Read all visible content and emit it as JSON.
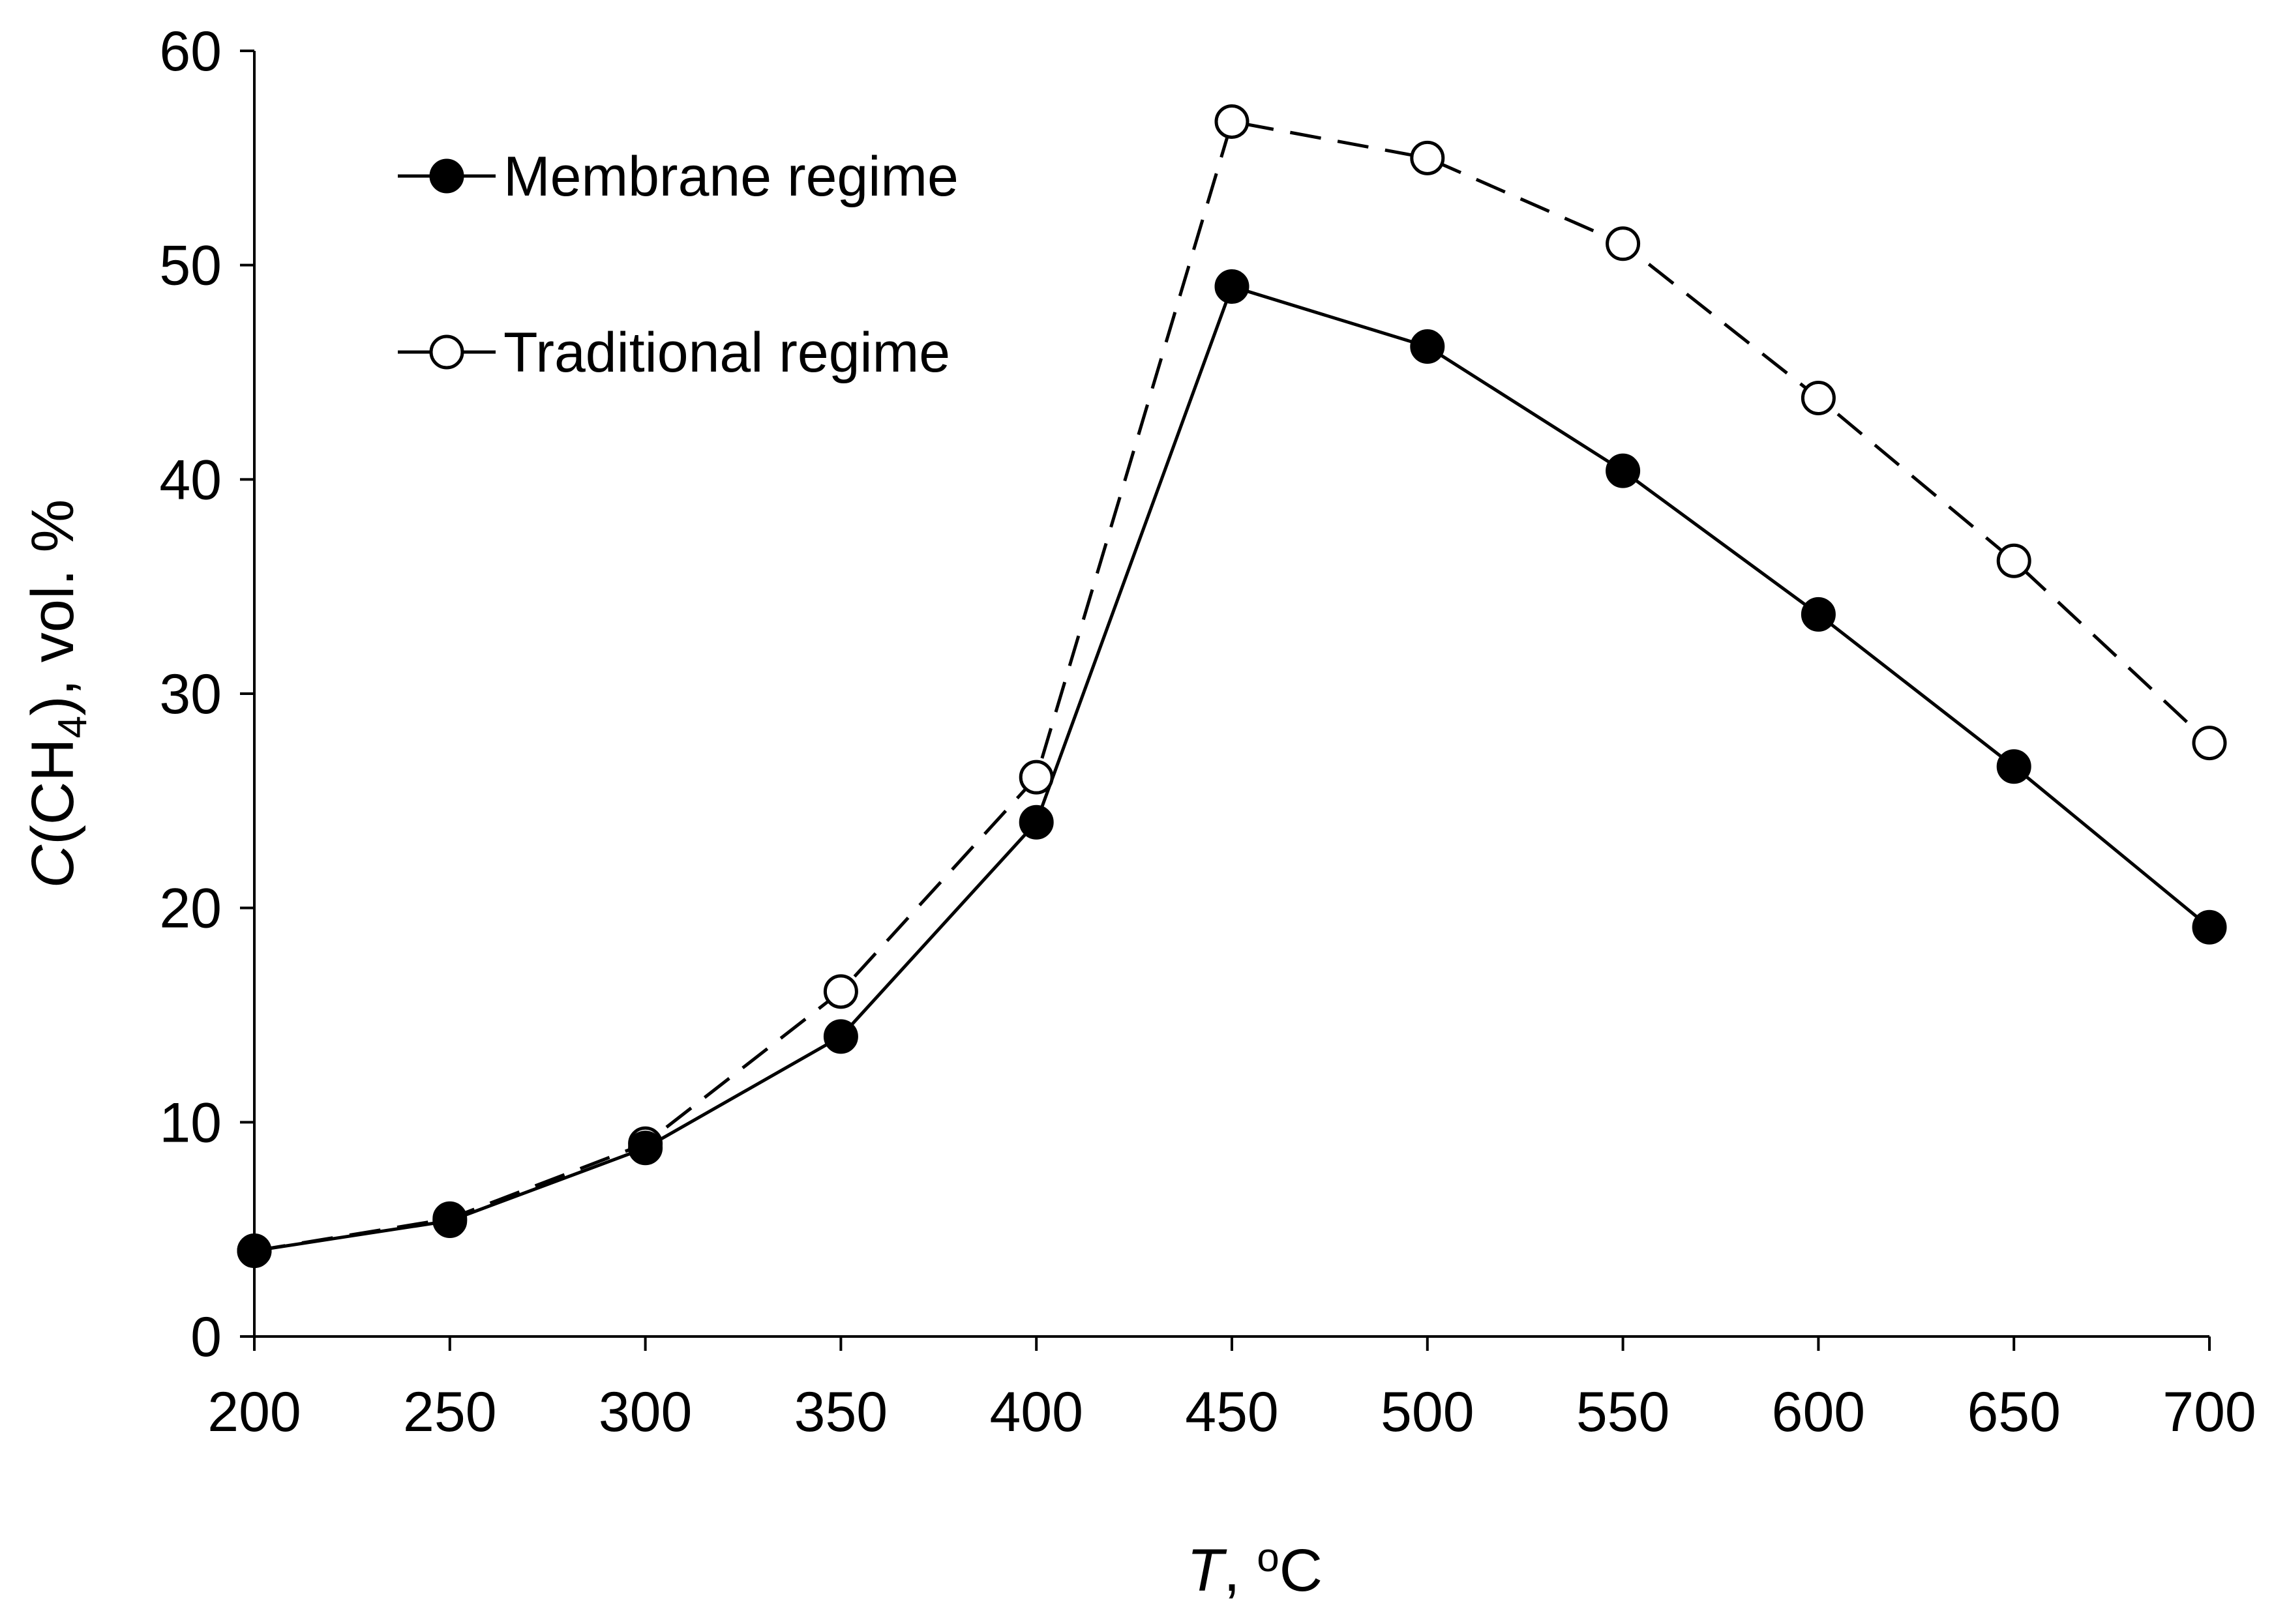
{
  "chart_data": {
    "type": "line",
    "title": "",
    "xlabel": {
      "var": "T",
      "sep": ", ",
      "sup": "o",
      "unit": "C"
    },
    "ylabel": {
      "var": "C",
      "open": "(CH",
      "sub": "4",
      "rest": "), vol. %"
    },
    "xlim": [
      200,
      700
    ],
    "ylim": [
      0,
      60
    ],
    "x": [
      200,
      250,
      300,
      350,
      400,
      450,
      500,
      550,
      600,
      650,
      700
    ],
    "xticks": [
      "200",
      "250",
      "300",
      "350",
      "400",
      "450",
      "500",
      "550",
      "600",
      "650",
      "700"
    ],
    "yticks": [
      "0",
      "10",
      "20",
      "30",
      "40",
      "50",
      "60"
    ],
    "grid": false,
    "legend_position": "top-left",
    "series": [
      {
        "name": "Membrane regime",
        "marker": "filled-circle",
        "line": "solid",
        "color": "#000000",
        "values": [
          4.0,
          5.4,
          8.8,
          14.0,
          24.0,
          49.0,
          46.2,
          40.4,
          33.7,
          26.6,
          19.1
        ]
      },
      {
        "name": "Traditional regime",
        "marker": "open-circle",
        "line": "dashed",
        "color": "#000000",
        "values": [
          4.0,
          5.5,
          9.0,
          16.1,
          26.1,
          56.7,
          55.0,
          51.0,
          43.8,
          36.2,
          27.7
        ]
      }
    ]
  }
}
